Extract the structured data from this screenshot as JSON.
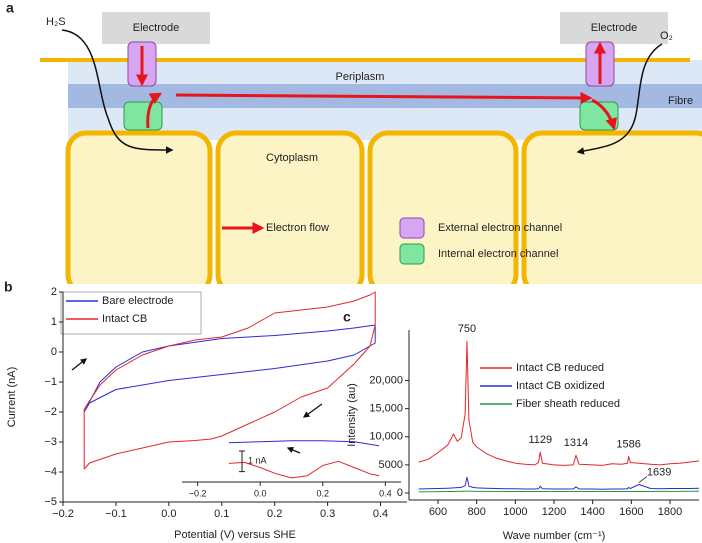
{
  "diagram": {
    "panel": "a",
    "h2s": "H₂S",
    "o2": "O₂",
    "electrode_left": "Electrode",
    "electrode_right": "Electrode",
    "periplasm": "Periplasm",
    "fibre": "Fibre",
    "cytoplasm": "Cytoplasm",
    "legend": [
      "Electron flow",
      "External electron channel",
      "Internal electron channel"
    ]
  },
  "chart_data": [
    {
      "type": "line",
      "panel": "b",
      "xlabel": "Potential (V) versus SHE",
      "ylabel": "Current (nA)",
      "xlim": [
        -0.2,
        0.45
      ],
      "xticks": [
        {
          "value": -0.2,
          "label": "−0.2"
        },
        {
          "value": -0.1,
          "label": "−0.1"
        },
        {
          "value": 0,
          "label": "0.0"
        },
        0.1,
        0.2,
        0.3,
        0.4
      ],
      "ylim": [
        -5,
        2
      ],
      "yticks": [
        {
          "value": -5,
          "label": "−5"
        },
        {
          "value": -4,
          "label": "−4"
        },
        {
          "value": -3,
          "label": "−3"
        },
        {
          "value": -2,
          "label": "−2"
        },
        {
          "value": -1,
          "label": "−1"
        },
        0,
        1,
        2
      ],
      "series": [
        {
          "name": "Bare electrode",
          "color": "#2b2bd6",
          "x": [
            -0.16,
            -0.13,
            -0.1,
            -0.05,
            0,
            0.1,
            0.2,
            0.3,
            0.35,
            0.39,
            0.39,
            0.35,
            0.3,
            0.2,
            0.1,
            0,
            -0.1,
            -0.15,
            -0.16
          ],
          "values": [
            -2.0,
            -1.0,
            -0.5,
            0.0,
            0.2,
            0.45,
            0.55,
            0.7,
            0.8,
            0.9,
            0.3,
            -0.1,
            -0.3,
            -0.55,
            -0.75,
            -0.95,
            -1.25,
            -1.7,
            -2.0
          ]
        },
        {
          "name": "Intact CB",
          "color": "#e5262b",
          "x": [
            -0.16,
            -0.13,
            -0.1,
            -0.05,
            0,
            0.05,
            0.1,
            0.15,
            0.18,
            0.2,
            0.25,
            0.3,
            0.35,
            0.38,
            0.39,
            0.39,
            0.38,
            0.35,
            0.3,
            0.25,
            0.2,
            0.15,
            0.1,
            0.08,
            0.05,
            0,
            -0.05,
            -0.1,
            -0.15,
            -0.16,
            -0.16
          ],
          "values": [
            -1.9,
            -1.1,
            -0.6,
            -0.1,
            0.2,
            0.4,
            0.5,
            0.8,
            1.1,
            1.3,
            1.4,
            1.5,
            1.7,
            1.9,
            2.0,
            0.9,
            0.2,
            -0.4,
            -1.2,
            -1.5,
            -2.0,
            -2.4,
            -2.8,
            -2.9,
            -2.95,
            -3.0,
            -3.2,
            -3.4,
            -3.7,
            -3.9,
            -1.9
          ]
        }
      ]
    },
    {
      "type": "line",
      "xlim": [
        -0.25,
        0.45
      ],
      "xticks": [
        {
          "value": -0.2,
          "label": "−0.2"
        },
        {
          "value": 0,
          "label": "0.0"
        },
        0.2,
        0.4
      ],
      "ylim": [
        0,
        3
      ],
      "scale_bar": {
        "value": 1,
        "label": "1 nA"
      },
      "series": [
        {
          "color": "#2b2bd6",
          "x": [
            -0.1,
            0,
            0.1,
            0.2,
            0.3,
            0.38
          ],
          "values": [
            1.9,
            1.95,
            2.0,
            2.0,
            1.95,
            1.75
          ]
        },
        {
          "color": "#e5262b",
          "x": [
            -0.1,
            -0.05,
            0,
            0.05,
            0.1,
            0.15,
            0.2,
            0.25,
            0.3,
            0.35,
            0.38
          ],
          "values": [
            0.9,
            0.95,
            0.7,
            0.4,
            0.2,
            0.3,
            0.8,
            1.0,
            0.7,
            0.4,
            0.3
          ]
        }
      ]
    },
    {
      "type": "line",
      "panel": "c",
      "xlabel": "Wave number (cm⁻¹)",
      "ylabel": "Intensity (au)",
      "xlim": [
        450,
        1950
      ],
      "xticks": [
        600,
        800,
        1000,
        1200,
        1400,
        1600,
        1800
      ],
      "ylim": [
        -1250,
        29000
      ],
      "yticks": [
        0,
        5000,
        {
          "value": 10000,
          "label": "10,000"
        },
        {
          "value": 15000,
          "label": "15,000"
        },
        {
          "value": 20000,
          "label": "20,000"
        }
      ],
      "peaks": [
        750,
        1129,
        1314,
        1586,
        1639
      ],
      "x": [
        500,
        550,
        600,
        650,
        680,
        700,
        720,
        740,
        750,
        760,
        780,
        800,
        850,
        900,
        950,
        1000,
        1050,
        1100,
        1120,
        1129,
        1140,
        1200,
        1250,
        1300,
        1314,
        1330,
        1400,
        1450,
        1500,
        1550,
        1580,
        1586,
        1595,
        1639,
        1700,
        1750,
        1800,
        1850,
        1900,
        1950
      ],
      "series": [
        {
          "name": "Intact CB reduced",
          "color": "#e5262b",
          "values": [
            5500,
            6000,
            7200,
            8500,
            10500,
            9200,
            9800,
            14000,
            27000,
            13000,
            9000,
            8200,
            7000,
            6200,
            5700,
            5300,
            5100,
            5000,
            5400,
            7300,
            5300,
            5000,
            4900,
            5000,
            6700,
            5100,
            5000,
            4900,
            5200,
            5100,
            5300,
            6500,
            5400,
            5300,
            5100,
            5000,
            5200,
            5300,
            5500,
            5700
          ]
        },
        {
          "name": "Intact CB oxidized",
          "color": "#2b2bd6",
          "values": [
            700,
            750,
            800,
            850,
            900,
            950,
            1000,
            1300,
            2800,
            1200,
            1000,
            900,
            850,
            800,
            750,
            750,
            700,
            700,
            750,
            1200,
            750,
            700,
            700,
            700,
            1100,
            700,
            700,
            650,
            700,
            700,
            750,
            1000,
            800,
            1500,
            800,
            750,
            800,
            800,
            800,
            850
          ]
        },
        {
          "name": "Fiber sheath reduced",
          "color": "#1e9e3a",
          "values": [
            200,
            220,
            250,
            260,
            270,
            280,
            290,
            300,
            350,
            300,
            290,
            280,
            280,
            280,
            270,
            270,
            270,
            270,
            270,
            280,
            270,
            270,
            270,
            270,
            280,
            270,
            270,
            270,
            270,
            270,
            270,
            280,
            270,
            270,
            270,
            280,
            280,
            280,
            290,
            300
          ]
        }
      ]
    }
  ]
}
